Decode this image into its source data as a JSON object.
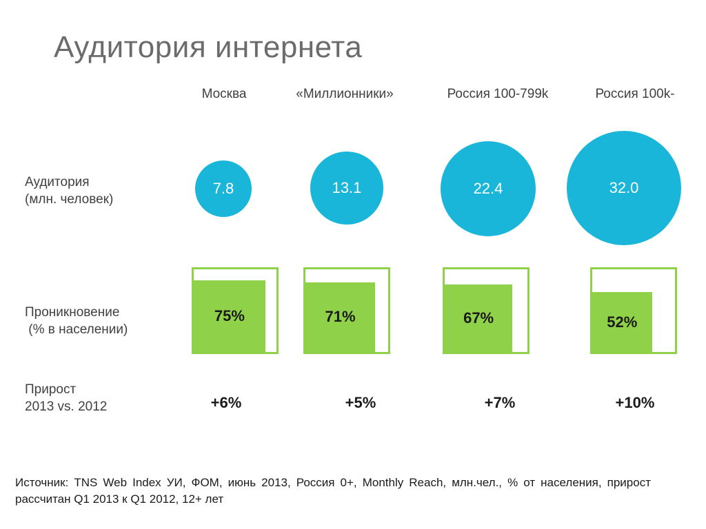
{
  "slide": {
    "title": "Аудитория интернета",
    "source": "Источник: TNS Web Index УИ, ФОМ, июнь 2013, Россия 0+, Monthly Reach, млн.чел., % от населения, прирост рассчитан Q1 2013 к Q1 2012, 12+ лет"
  },
  "rows": {
    "audience": [
      "Аудитория",
      "(млн. человек)"
    ],
    "penetration": [
      "Проникновение",
      " (% в населении)"
    ],
    "growth": [
      "Прирост",
      "2013 vs. 2012"
    ]
  },
  "chart_data": {
    "type": "table",
    "categories": [
      "Москва",
      "«Миллионники»",
      "Россия 100-799k",
      "Россия 100k-"
    ],
    "series": [
      {
        "name": "Аудитория (млн. человек)",
        "values": [
          7.8,
          13.1,
          22.4,
          32.0
        ],
        "labels": [
          "7.8",
          "13.1",
          "22.4",
          "32.0"
        ]
      },
      {
        "name": "Проникновение (% в населении)",
        "values": [
          75,
          71,
          67,
          52
        ],
        "labels": [
          "75%",
          "71%",
          "67%",
          "52%"
        ]
      },
      {
        "name": "Прирост 2013 vs. 2012",
        "values": [
          6,
          5,
          7,
          10
        ],
        "labels": [
          "+6%",
          "+5%",
          "+7%",
          "+10%"
        ]
      }
    ],
    "colors": {
      "bubble": "#19b6d9",
      "square": "#8fd24a"
    }
  }
}
